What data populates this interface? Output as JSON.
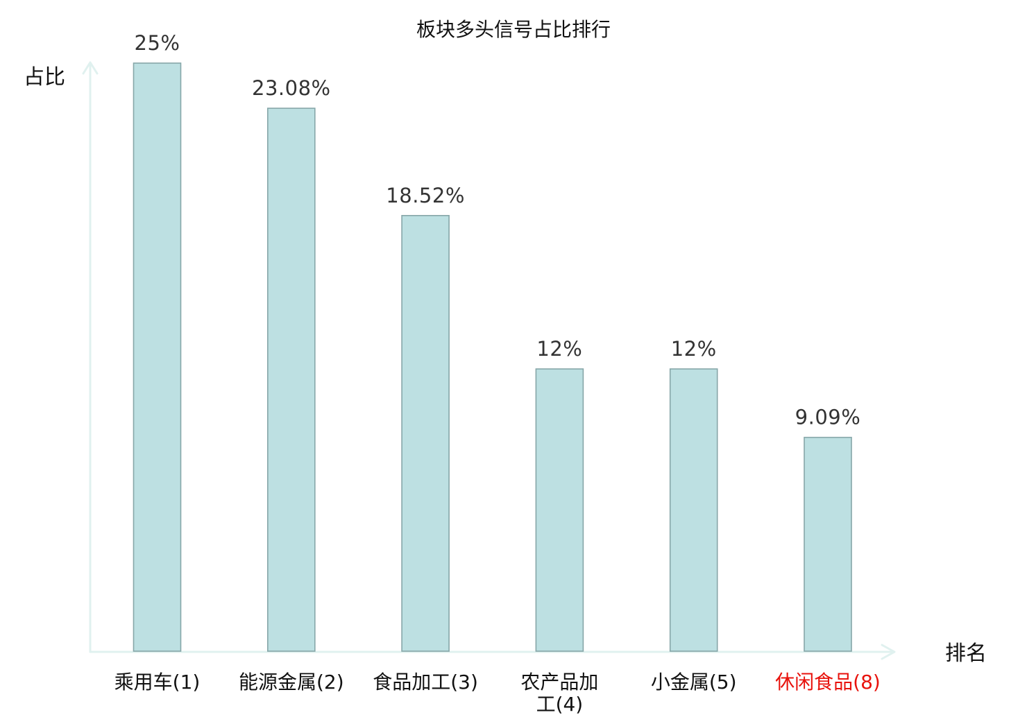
{
  "chart_data": {
    "type": "bar",
    "title": "板块多头信号占比排行",
    "xlabel": "排名",
    "ylabel": "占比",
    "categories": [
      "乘用车(1)",
      "能源金属(2)",
      "食品加工(3)",
      "农产品加工(4)",
      "小金属(5)",
      "休闲食品(8)"
    ],
    "category_lines": [
      [
        "乘用车(1)"
      ],
      [
        "能源金属(2)"
      ],
      [
        "食品加工(3)"
      ],
      [
        "农产品加",
        "工(4)"
      ],
      [
        "小金属(5)"
      ],
      [
        "休闲食品(8)"
      ]
    ],
    "values": [
      25,
      23.08,
      18.52,
      12,
      12,
      9.09
    ],
    "value_labels": [
      "25%",
      "23.08%",
      "18.52%",
      "12%",
      "12%",
      "9.09%"
    ],
    "highlight_index": 5,
    "ylim": [
      0,
      25
    ],
    "grid": false,
    "legend": "none"
  },
  "colors": {
    "bar_fill": "#bde0e2",
    "bar_stroke": "#86a6a8",
    "axis": "#e0f1ef",
    "text": "#111111",
    "value_text": "#333333",
    "highlight": "#e8120c"
  }
}
